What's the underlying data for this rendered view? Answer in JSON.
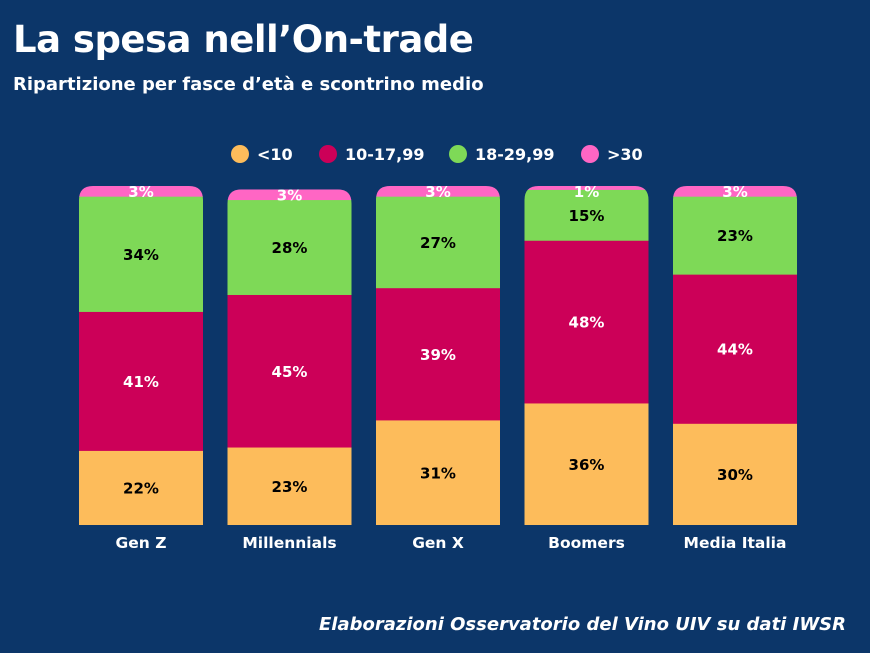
{
  "chart_data": {
    "type": "bar",
    "stacked": true,
    "title": "La spesa nell’On-trade",
    "subtitle": "Ripartizione per fasce d’età e scontrino medio",
    "source": "Elaborazioni Osservatorio del Vino UIV su dati IWSR",
    "categories": [
      "Gen Z",
      "Millennials",
      "Gen X",
      "Boomers",
      "Media Italia"
    ],
    "series": [
      {
        "name": "<10",
        "color": "#fdbc5b",
        "label_color": "#000000",
        "values": [
          22,
          23,
          31,
          36,
          30
        ]
      },
      {
        "name": "10-17,99",
        "color": "#cc0058",
        "label_color": "#ffffff",
        "values": [
          41,
          45,
          39,
          48,
          44
        ]
      },
      {
        "name": "18-29,99",
        "color": "#7ed957",
        "label_color": "#000000",
        "values": [
          34,
          28,
          27,
          15,
          23
        ]
      },
      {
        "name": ">30",
        "color": "#ff66c4",
        "label_color": "#ffffff",
        "values": [
          3,
          3,
          3,
          1,
          3
        ]
      }
    ],
    "value_suffix": "%",
    "legend_position": "top",
    "grid": false,
    "ylim": [
      0,
      100
    ]
  }
}
